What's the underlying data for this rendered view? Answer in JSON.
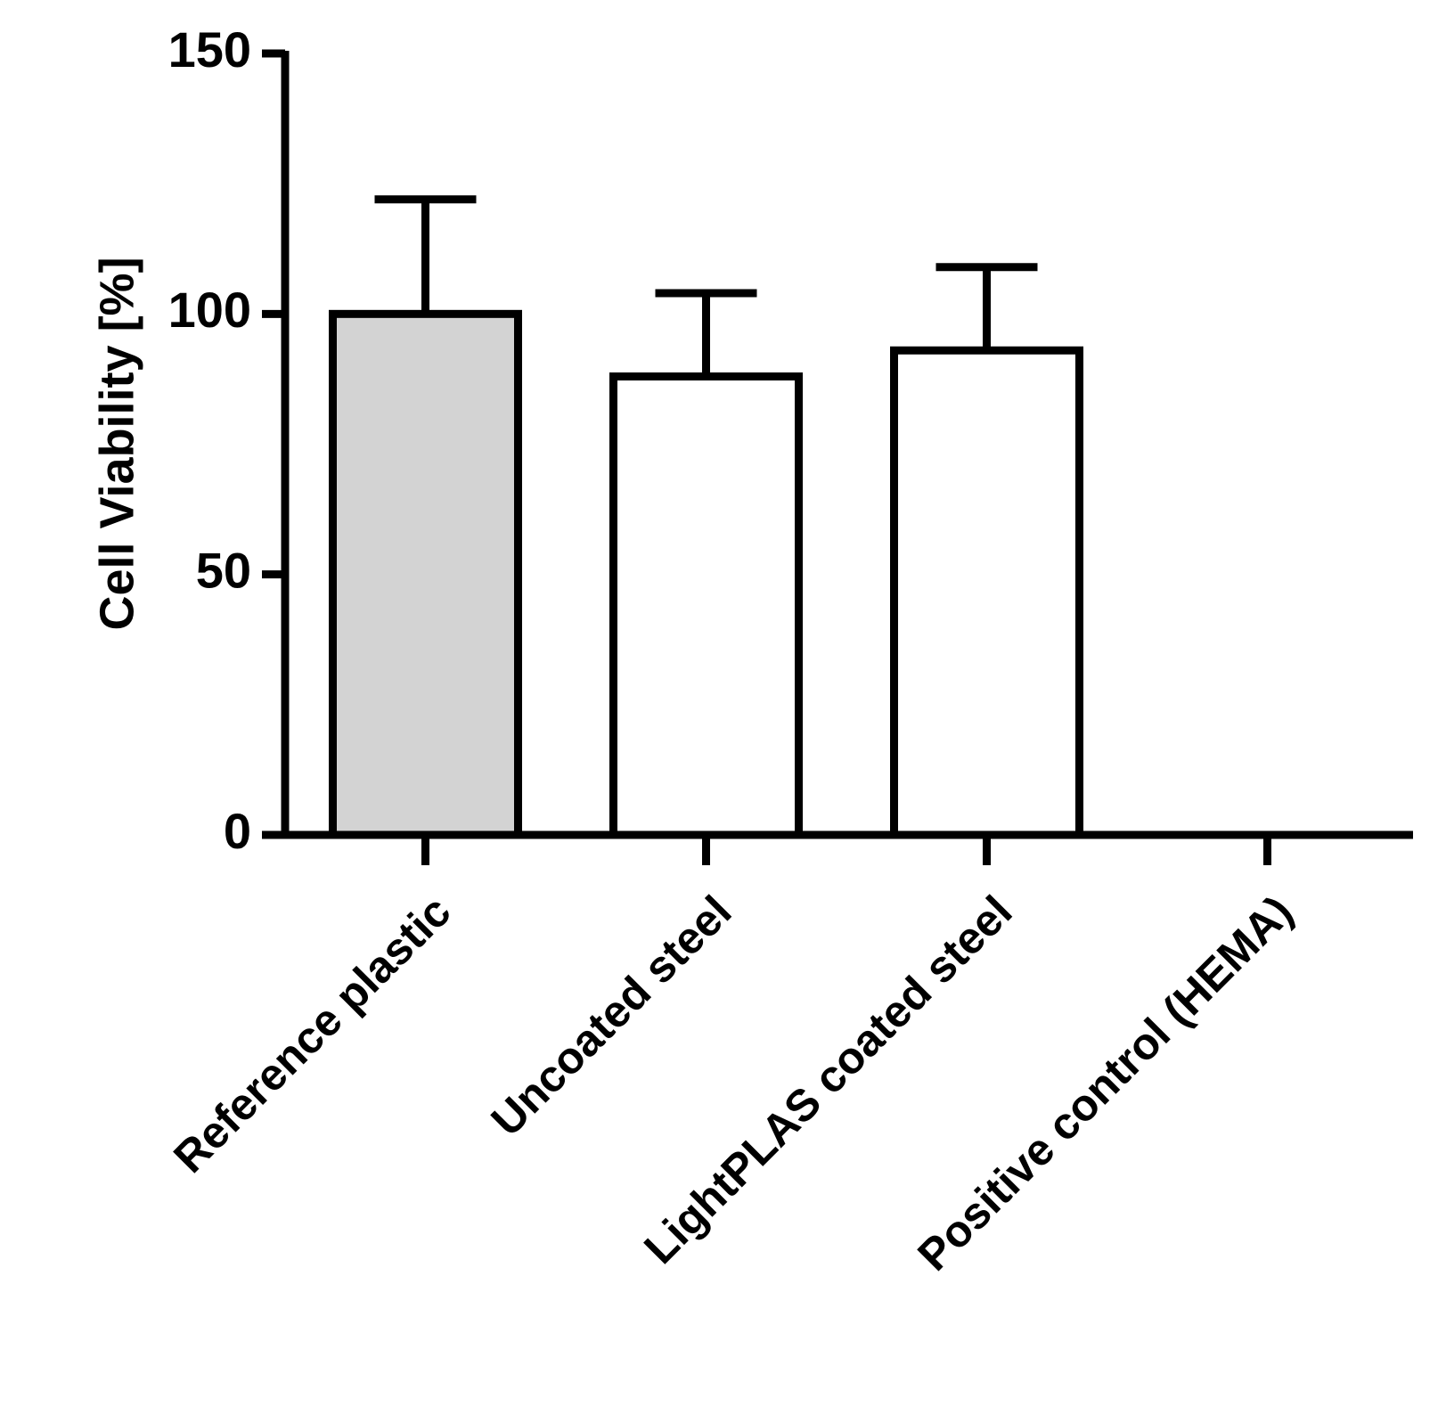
{
  "chart_data": {
    "type": "bar",
    "y_label": "Cell Viability [%]",
    "categories": [
      "Reference plastic",
      "Uncoated steel",
      "LightPLAS coated steel",
      "Positive control (HEMA)"
    ],
    "values": [
      100,
      88,
      93,
      0
    ],
    "errors": [
      22,
      16,
      16,
      null
    ],
    "colors": [
      "#d3d3d3",
      "#ffffff",
      "#ffffff",
      "#ffffff"
    ],
    "ylim": [
      0,
      150
    ],
    "yticks": [
      0,
      50,
      100,
      150
    ],
    "grid": false
  }
}
